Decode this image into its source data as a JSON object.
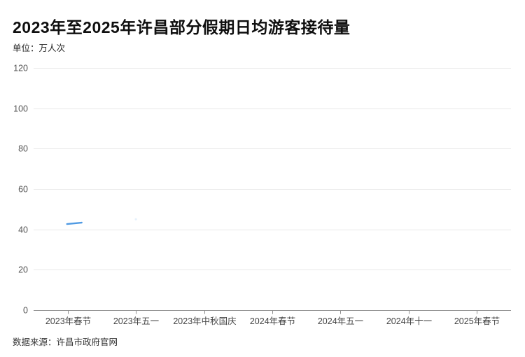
{
  "chart": {
    "title": "2023年至2025年许昌部分假期日均游客接待量",
    "unit_label": "单位：万人次",
    "source": "数据来源：许昌市政府官网"
  },
  "chart_data": {
    "type": "line",
    "title": "2023年至2025年许昌部分假期日均游客接待量",
    "unit": "万人次",
    "categories": [
      "2023年春节",
      "2023年五一",
      "2023年中秋国庆",
      "2024年春节",
      "2024年五一",
      "2024年十一",
      "2025年春节"
    ],
    "series": [
      {
        "name": "日均游客接待量",
        "color": "#4f9ae3",
        "values": [
          43,
          null,
          null,
          null,
          null,
          null,
          null
        ]
      }
    ],
    "faint_point": {
      "category_index": 1,
      "value": 45
    },
    "ylim": [
      0,
      120
    ],
    "yticks": [
      0,
      20,
      40,
      60,
      80,
      100,
      120
    ],
    "grid": true,
    "legend": false,
    "note": "line series only partially rendered: short blue segment at first category near value 43",
    "source": "数据来源：许昌市政府官网"
  },
  "colors": {
    "grid": "#e9e9e9",
    "axis": "#8f8f8f",
    "y_tick_label": "#555555",
    "x_tick_label": "#444444",
    "series": "#4f9ae3",
    "title": "#0f0f0f",
    "text": "#333333"
  }
}
